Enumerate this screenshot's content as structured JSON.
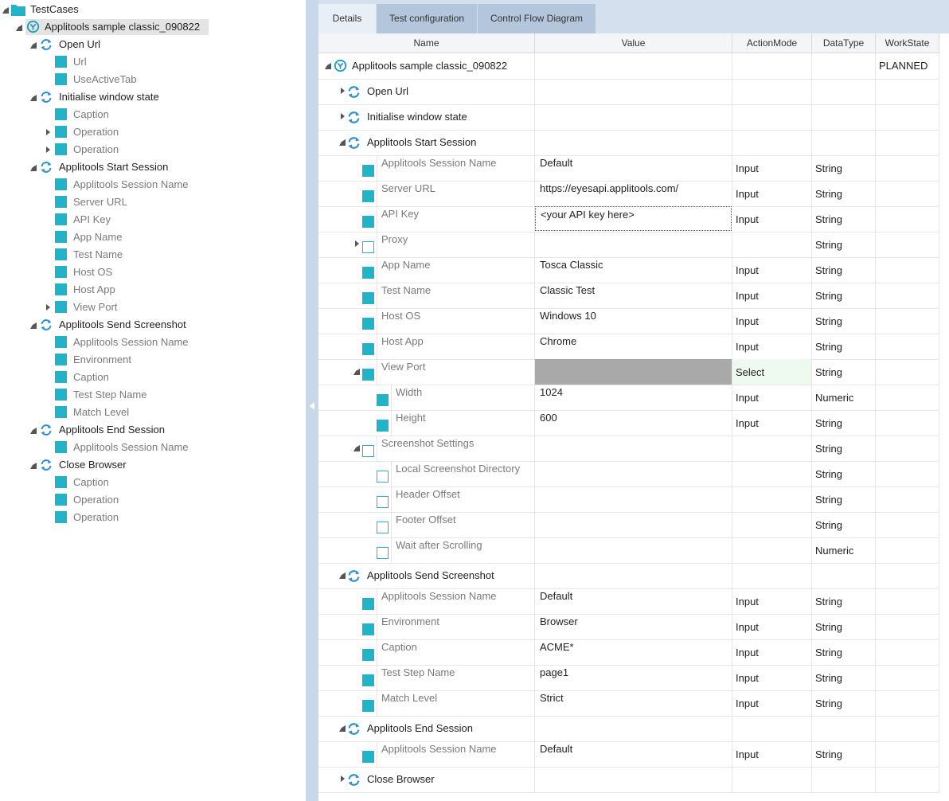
{
  "colors": {
    "accent": "#23b3c9",
    "panel_divider": "#c9d7ea",
    "tab_active": "#e9eff7",
    "tab_inactive": "#b4c6dc",
    "refresh_icon": "#2a8fd0"
  },
  "left_tree": {
    "root": "TestCases",
    "testcase": "Applitools sample classic_090822",
    "nodes": [
      {
        "label": "Open Url",
        "kind": "step",
        "indent": 1,
        "toggle": "exp"
      },
      {
        "label": "Url",
        "kind": "sq",
        "indent": 2
      },
      {
        "label": "UseActiveTab",
        "kind": "sq",
        "indent": 2
      },
      {
        "label": "Initialise window state",
        "kind": "step",
        "indent": 1,
        "toggle": "exp"
      },
      {
        "label": "Caption",
        "kind": "sq",
        "indent": 2
      },
      {
        "label": "Operation",
        "kind": "sq",
        "indent": 2,
        "toggle": "col"
      },
      {
        "label": "Operation",
        "kind": "sq",
        "indent": 2,
        "toggle": "col"
      },
      {
        "label": "Applitools Start Session",
        "kind": "step",
        "indent": 1,
        "toggle": "exp"
      },
      {
        "label": "Applitools Session Name",
        "kind": "sq",
        "indent": 2
      },
      {
        "label": "Server URL",
        "kind": "sq",
        "indent": 2
      },
      {
        "label": "API Key",
        "kind": "sq",
        "indent": 2
      },
      {
        "label": "App Name",
        "kind": "sq",
        "indent": 2
      },
      {
        "label": "Test Name",
        "kind": "sq",
        "indent": 2
      },
      {
        "label": "Host OS",
        "kind": "sq",
        "indent": 2
      },
      {
        "label": "Host App",
        "kind": "sq",
        "indent": 2
      },
      {
        "label": "View Port",
        "kind": "sq",
        "indent": 2,
        "toggle": "col"
      },
      {
        "label": "Applitools Send Screenshot",
        "kind": "step",
        "indent": 1,
        "toggle": "exp"
      },
      {
        "label": "Applitools Session Name",
        "kind": "sq",
        "indent": 2
      },
      {
        "label": "Environment",
        "kind": "sq",
        "indent": 2
      },
      {
        "label": "Caption",
        "kind": "sq",
        "indent": 2
      },
      {
        "label": "Test Step Name",
        "kind": "sq",
        "indent": 2
      },
      {
        "label": "Match Level",
        "kind": "sq",
        "indent": 2
      },
      {
        "label": "Applitools End Session",
        "kind": "step",
        "indent": 1,
        "toggle": "exp"
      },
      {
        "label": "Applitools Session Name",
        "kind": "sq",
        "indent": 2
      },
      {
        "label": "Close Browser",
        "kind": "step",
        "indent": 1,
        "toggle": "exp"
      },
      {
        "label": "Caption",
        "kind": "sq",
        "indent": 2
      },
      {
        "label": "Operation",
        "kind": "sq",
        "indent": 2
      },
      {
        "label": "Operation",
        "kind": "sq",
        "indent": 2
      }
    ]
  },
  "tabs": [
    "Details",
    "Test configuration",
    "Control Flow Diagram"
  ],
  "columns": [
    "Name",
    "Value",
    "ActionMode",
    "DataType",
    "WorkState"
  ],
  "grid_rows": [
    {
      "name": "Applitools sample classic_090822",
      "kind": "tc",
      "level": 0,
      "toggle": "exp",
      "value": "",
      "action": "",
      "dtype": "",
      "work": "PLANNED"
    },
    {
      "name": "Open Url",
      "kind": "step",
      "level": 1,
      "toggle": "col",
      "value": "",
      "action": "",
      "dtype": "",
      "work": ""
    },
    {
      "name": "Initialise window state",
      "kind": "step",
      "level": 1,
      "toggle": "col",
      "value": "",
      "action": "",
      "dtype": "",
      "work": ""
    },
    {
      "name": "Applitools Start Session",
      "kind": "step",
      "level": 1,
      "toggle": "exp",
      "value": "",
      "action": "",
      "dtype": "",
      "work": ""
    },
    {
      "name": "Applitools Session Name",
      "kind": "sq",
      "level": 2,
      "value": "Default",
      "action": "Input",
      "dtype": "String",
      "work": ""
    },
    {
      "name": "Server URL",
      "kind": "sq",
      "level": 2,
      "value": "https://eyesapi.applitools.com/",
      "action": "Input",
      "dtype": "String",
      "work": ""
    },
    {
      "name": "API Key",
      "kind": "sq",
      "level": 2,
      "value": "<your API key here>",
      "action": "Input",
      "dtype": "String",
      "work": "",
      "focused": true
    },
    {
      "name": "Proxy",
      "kind": "hollow",
      "level": 2,
      "toggle": "col",
      "value": "",
      "action": "",
      "dtype": "String",
      "work": ""
    },
    {
      "name": "App Name",
      "kind": "sq",
      "level": 2,
      "value": "Tosca Classic",
      "action": "Input",
      "dtype": "String",
      "work": ""
    },
    {
      "name": "Test Name",
      "kind": "sq",
      "level": 2,
      "value": "Classic Test",
      "action": "Input",
      "dtype": "String",
      "work": ""
    },
    {
      "name": "Host OS",
      "kind": "sq",
      "level": 2,
      "value": "Windows 10",
      "action": "Input",
      "dtype": "String",
      "work": ""
    },
    {
      "name": "Host App",
      "kind": "sq",
      "level": 2,
      "value": "Chrome",
      "action": "Input",
      "dtype": "String",
      "work": ""
    },
    {
      "name": "View Port",
      "kind": "sq",
      "level": 2,
      "toggle": "exp",
      "value": "",
      "action": "Select",
      "dtype": "String",
      "work": "",
      "greyvalue": true,
      "greenaction": true
    },
    {
      "name": "Width",
      "kind": "sq",
      "level": 3,
      "value": "1024",
      "action": "Input",
      "dtype": "Numeric",
      "work": ""
    },
    {
      "name": "Height",
      "kind": "sq",
      "level": 3,
      "value": "600",
      "action": "Input",
      "dtype": "String",
      "work": ""
    },
    {
      "name": "Screenshot Settings",
      "kind": "hollow",
      "level": 2,
      "toggle": "exp",
      "value": "",
      "action": "",
      "dtype": "String",
      "work": ""
    },
    {
      "name": "Local Screenshot Directory",
      "kind": "hollow",
      "level": 3,
      "value": "",
      "action": "",
      "dtype": "String",
      "work": ""
    },
    {
      "name": "Header Offset",
      "kind": "hollow",
      "level": 3,
      "value": "",
      "action": "",
      "dtype": "String",
      "work": ""
    },
    {
      "name": "Footer Offset",
      "kind": "hollow",
      "level": 3,
      "value": "",
      "action": "",
      "dtype": "String",
      "work": ""
    },
    {
      "name": "Wait after Scrolling",
      "kind": "hollow",
      "level": 3,
      "value": "",
      "action": "",
      "dtype": "Numeric",
      "work": ""
    },
    {
      "name": "Applitools Send Screenshot",
      "kind": "step",
      "level": 1,
      "toggle": "exp",
      "value": "",
      "action": "",
      "dtype": "",
      "work": ""
    },
    {
      "name": "Applitools Session Name",
      "kind": "sq",
      "level": 2,
      "value": "Default",
      "action": "Input",
      "dtype": "String",
      "work": ""
    },
    {
      "name": "Environment",
      "kind": "sq",
      "level": 2,
      "value": "Browser",
      "action": "Input",
      "dtype": "String",
      "work": ""
    },
    {
      "name": "Caption",
      "kind": "sq",
      "level": 2,
      "value": "ACME*",
      "action": "Input",
      "dtype": "String",
      "work": ""
    },
    {
      "name": "Test Step Name",
      "kind": "sq",
      "level": 2,
      "value": "page1",
      "action": "Input",
      "dtype": "String",
      "work": ""
    },
    {
      "name": "Match Level",
      "kind": "sq",
      "level": 2,
      "value": "Strict",
      "action": "Input",
      "dtype": "String",
      "work": ""
    },
    {
      "name": "Applitools End Session",
      "kind": "step",
      "level": 1,
      "toggle": "exp",
      "value": "",
      "action": "",
      "dtype": "",
      "work": ""
    },
    {
      "name": "Applitools Session Name",
      "kind": "sq",
      "level": 2,
      "value": "Default",
      "action": "Input",
      "dtype": "String",
      "work": ""
    },
    {
      "name": "Close Browser",
      "kind": "step",
      "level": 1,
      "toggle": "col",
      "value": "",
      "action": "",
      "dtype": "",
      "work": ""
    }
  ]
}
